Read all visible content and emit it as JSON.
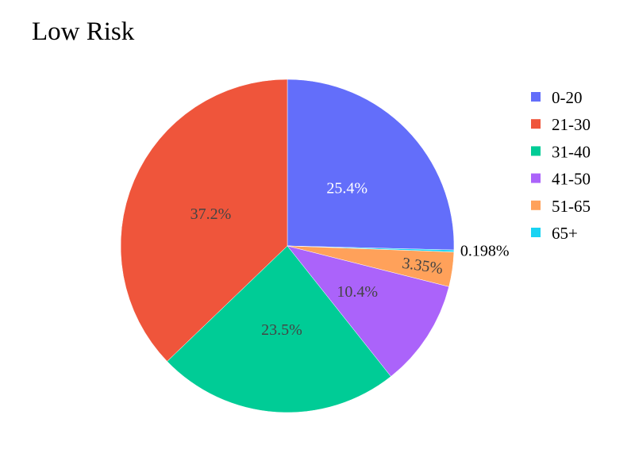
{
  "chart_data": {
    "type": "pie",
    "title": "Low Risk",
    "categories": [
      "0-20",
      "21-30",
      "31-40",
      "41-50",
      "51-65",
      "65+"
    ],
    "values": [
      25.4,
      37.2,
      23.5,
      10.4,
      3.35,
      0.198
    ],
    "labels": [
      "25.4%",
      "37.2%",
      "23.5%",
      "10.4%",
      "3.35%",
      "0.198%"
    ],
    "colors": [
      "#636efa",
      "#ef553b",
      "#00cc96",
      "#ab63fa",
      "#ffa15a",
      "#19d3f3"
    ],
    "label_colors": [
      "#ffffff",
      "#444444",
      "#444444",
      "#444444",
      "#444444",
      "#000000"
    ],
    "slice_order": [
      0,
      5,
      4,
      3,
      2,
      1
    ],
    "direction": "clockwise",
    "start_angle_deg": 0,
    "legend_position": "right",
    "small_slice_label": "outside"
  }
}
